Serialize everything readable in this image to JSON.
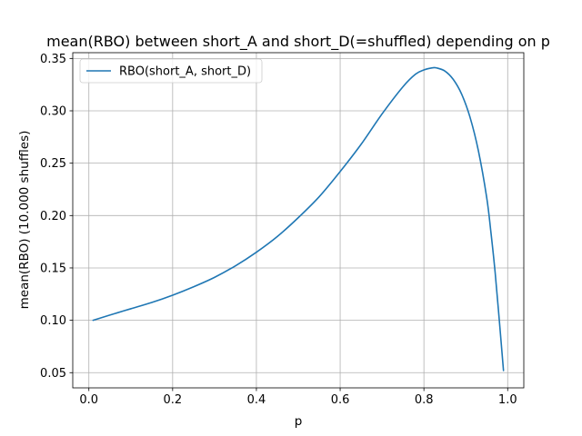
{
  "chart_data": {
    "type": "line",
    "title": "mean(RBO) between short_A and short_D(=shuffled) depending on p",
    "xlabel": "p",
    "ylabel": "mean(RBO) (10.000 shuffles)",
    "xlim": [
      -0.0385,
      1.0385
    ],
    "ylim": [
      0.0355,
      0.3555
    ],
    "xticks": [
      0.0,
      0.2,
      0.4,
      0.6,
      0.8,
      1.0
    ],
    "xtick_labels": [
      "0.0",
      "0.2",
      "0.4",
      "0.6",
      "0.8",
      "1.0"
    ],
    "yticks": [
      0.05,
      0.1,
      0.15,
      0.2,
      0.25,
      0.3,
      0.35
    ],
    "ytick_labels": [
      "0.05",
      "0.10",
      "0.15",
      "0.20",
      "0.25",
      "0.30",
      "0.35"
    ],
    "grid": true,
    "legend_position": "top-left",
    "series": [
      {
        "name": "RBO(short_A, short_D)",
        "color": "#1f77b4",
        "x": [
          0.01,
          0.05,
          0.1,
          0.15,
          0.2,
          0.25,
          0.3,
          0.35,
          0.4,
          0.45,
          0.5,
          0.55,
          0.6,
          0.65,
          0.7,
          0.75,
          0.78,
          0.8,
          0.82,
          0.83,
          0.85,
          0.87,
          0.89,
          0.91,
          0.93,
          0.95,
          0.96,
          0.97,
          0.98,
          0.99
        ],
        "values": [
          0.1,
          0.105,
          0.111,
          0.117,
          0.124,
          0.132,
          0.141,
          0.152,
          0.165,
          0.18,
          0.198,
          0.218,
          0.242,
          0.268,
          0.297,
          0.323,
          0.335,
          0.339,
          0.341,
          0.341,
          0.338,
          0.33,
          0.316,
          0.294,
          0.262,
          0.217,
          0.184,
          0.146,
          0.1,
          0.052
        ]
      }
    ]
  }
}
